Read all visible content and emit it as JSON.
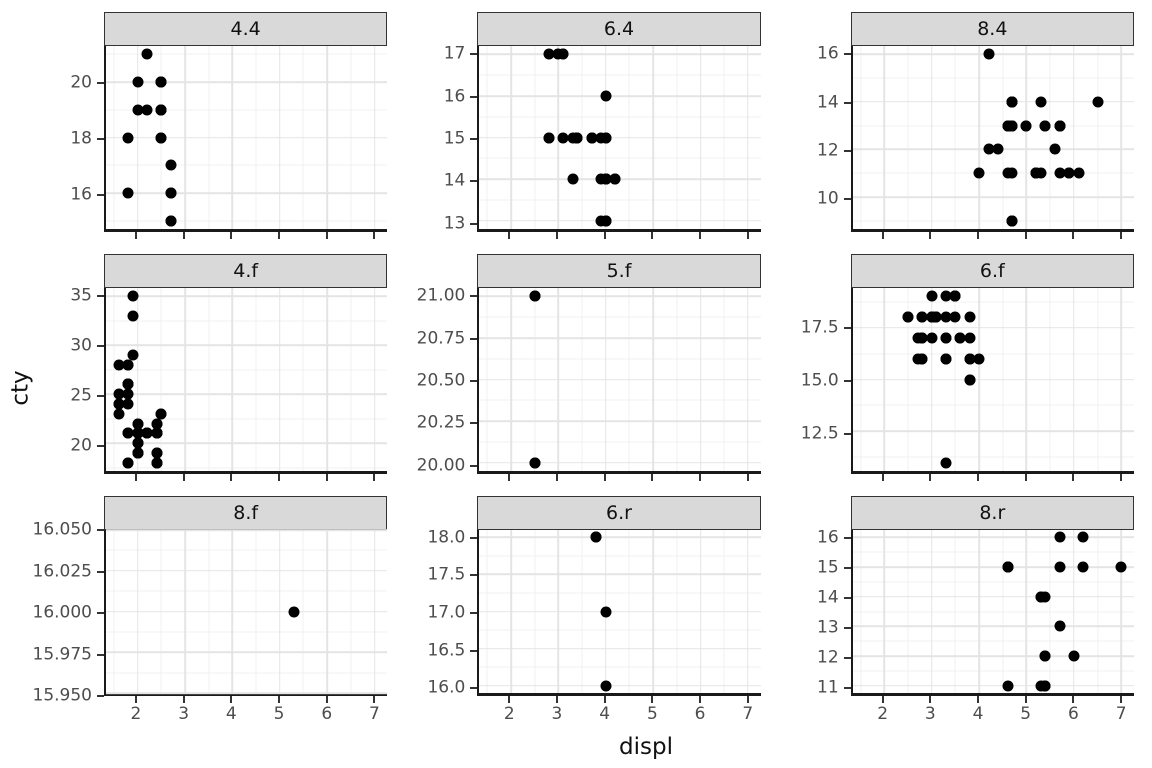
{
  "chart_data": {
    "type": "scatter",
    "title": "",
    "xlabel": "displ",
    "ylabel": "cty",
    "legend": "none",
    "layout": "facet-grid-3x3, free y scales, shared x scale 2-7, light gray major/minor gridlines, gray facet strips",
    "x_ticks": [
      2,
      3,
      4,
      5,
      6,
      7
    ],
    "x_tick_labels": [
      "2",
      "3",
      "4",
      "5",
      "6",
      "7"
    ],
    "x_domain": [
      1.33,
      7.27
    ],
    "style": {
      "strip_bg": "#d9d9d9",
      "point_color": "#000000",
      "grid_major": "#e4e4e4",
      "grid_minor": "#f1f1f1",
      "axis_line": "#1a1a1a",
      "tick_color": "#333333",
      "text_color": "#4d4d4d"
    },
    "facets": [
      {
        "label": "4.4",
        "y_ticks": [
          16,
          18,
          20
        ],
        "y_tick_labels": [
          "16",
          "18",
          "20"
        ],
        "y_domain": [
          14.7,
          21.3
        ],
        "points": [
          [
            1.8,
            18
          ],
          [
            1.8,
            16
          ],
          [
            2.0,
            20
          ],
          [
            2.0,
            19
          ],
          [
            2.2,
            21
          ],
          [
            2.2,
            19
          ],
          [
            2.5,
            19
          ],
          [
            2.5,
            20
          ],
          [
            2.5,
            20
          ],
          [
            2.5,
            19
          ],
          [
            2.5,
            18
          ],
          [
            2.5,
            18
          ],
          [
            2.5,
            19
          ],
          [
            2.5,
            19
          ],
          [
            2.5,
            20
          ],
          [
            2.5,
            20
          ],
          [
            2.7,
            15
          ],
          [
            2.7,
            16
          ],
          [
            2.7,
            17
          ],
          [
            2.7,
            16
          ],
          [
            2.7,
            15
          ]
        ]
      },
      {
        "label": "6.4",
        "y_ticks": [
          13,
          14,
          15,
          16,
          17
        ],
        "y_tick_labels": [
          "13",
          "14",
          "15",
          "16",
          "17"
        ],
        "y_domain": [
          12.8,
          17.2
        ],
        "points": [
          [
            2.8,
            15
          ],
          [
            2.8,
            17
          ],
          [
            3.1,
            17
          ],
          [
            3.1,
            15
          ],
          [
            2.8,
            15
          ],
          [
            3.1,
            17
          ],
          [
            3.7,
            15
          ],
          [
            3.7,
            15
          ],
          [
            3.9,
            15
          ],
          [
            3.9,
            14
          ],
          [
            3.9,
            13
          ],
          [
            4.0,
            14
          ],
          [
            4.0,
            13
          ],
          [
            4.0,
            13
          ],
          [
            4.0,
            14
          ],
          [
            4.2,
            14
          ],
          [
            4.2,
            14
          ],
          [
            3.0,
            17
          ],
          [
            3.7,
            15
          ],
          [
            4.0,
            15
          ],
          [
            4.0,
            14
          ],
          [
            4.0,
            13
          ],
          [
            3.3,
            14
          ],
          [
            3.3,
            15
          ],
          [
            4.0,
            14
          ],
          [
            3.4,
            15
          ],
          [
            3.4,
            15
          ],
          [
            4.0,
            16
          ],
          [
            3.4,
            15
          ],
          [
            3.4,
            15
          ],
          [
            4.0,
            15
          ],
          [
            4.0,
            14
          ]
        ]
      },
      {
        "label": "8.4",
        "y_ticks": [
          10,
          12,
          14,
          16
        ],
        "y_tick_labels": [
          "10",
          "12",
          "14",
          "16"
        ],
        "y_domain": [
          8.65,
          16.35
        ],
        "points": [
          [
            4.2,
            16
          ],
          [
            5.3,
            14
          ],
          [
            5.3,
            11
          ],
          [
            5.7,
            11
          ],
          [
            6.5,
            14
          ],
          [
            4.7,
            14
          ],
          [
            4.7,
            14
          ],
          [
            4.7,
            9
          ],
          [
            5.2,
            11
          ],
          [
            5.2,
            11
          ],
          [
            4.7,
            13
          ],
          [
            4.7,
            9
          ],
          [
            4.7,
            13
          ],
          [
            5.2,
            11
          ],
          [
            5.7,
            13
          ],
          [
            5.9,
            11
          ],
          [
            4.7,
            13
          ],
          [
            4.7,
            13
          ],
          [
            4.7,
            9
          ],
          [
            4.7,
            13
          ],
          [
            5.2,
            11
          ],
          [
            5.2,
            11
          ],
          [
            5.7,
            13
          ],
          [
            5.9,
            11
          ],
          [
            4.6,
            13
          ],
          [
            5.0,
            13
          ],
          [
            4.6,
            13
          ],
          [
            4.6,
            13
          ],
          [
            4.6,
            13
          ],
          [
            5.4,
            13
          ],
          [
            5.4,
            13
          ],
          [
            4.7,
            14
          ],
          [
            4.7,
            9
          ],
          [
            4.7,
            14
          ],
          [
            5.7,
            13
          ],
          [
            6.1,
            11
          ],
          [
            4.0,
            11
          ],
          [
            4.2,
            12
          ],
          [
            4.4,
            12
          ],
          [
            4.6,
            11
          ],
          [
            4.6,
            13
          ],
          [
            5.0,
            13
          ],
          [
            5.6,
            12
          ],
          [
            4.7,
            14
          ],
          [
            4.7,
            11
          ],
          [
            5.7,
            13
          ]
        ]
      },
      {
        "label": "4.f",
        "y_ticks": [
          20,
          25,
          30,
          35
        ],
        "y_tick_labels": [
          "20",
          "25",
          "30",
          "35"
        ],
        "y_domain": [
          17.15,
          35.85
        ],
        "points": [
          [
            1.8,
            18
          ],
          [
            1.8,
            21
          ],
          [
            2.0,
            20
          ],
          [
            2.0,
            21
          ],
          [
            2.4,
            19
          ],
          [
            2.4,
            22
          ],
          [
            2.4,
            18
          ],
          [
            1.6,
            28
          ],
          [
            1.6,
            24
          ],
          [
            1.6,
            25
          ],
          [
            1.6,
            23
          ],
          [
            1.6,
            24
          ],
          [
            1.8,
            26
          ],
          [
            1.8,
            25
          ],
          [
            1.8,
            24
          ],
          [
            2.0,
            21
          ],
          [
            2.4,
            18
          ],
          [
            2.4,
            18
          ],
          [
            2.4,
            21
          ],
          [
            2.4,
            21
          ],
          [
            2.0,
            19
          ],
          [
            2.0,
            19
          ],
          [
            2.0,
            20
          ],
          [
            2.0,
            20
          ],
          [
            2.4,
            21
          ],
          [
            2.4,
            19
          ],
          [
            2.5,
            23
          ],
          [
            2.5,
            23
          ],
          [
            2.2,
            21
          ],
          [
            2.2,
            21
          ],
          [
            2.4,
            21
          ],
          [
            2.4,
            21
          ],
          [
            2.2,
            21
          ],
          [
            2.2,
            21
          ],
          [
            2.4,
            21
          ],
          [
            2.4,
            22
          ],
          [
            1.8,
            26
          ],
          [
            1.8,
            28
          ],
          [
            1.8,
            26
          ],
          [
            1.8,
            26
          ],
          [
            1.8,
            28
          ],
          [
            2.0,
            21
          ],
          [
            2.0,
            19
          ],
          [
            2.0,
            21
          ],
          [
            2.0,
            22
          ],
          [
            1.9,
            33
          ],
          [
            2.0,
            21
          ],
          [
            2.0,
            19
          ],
          [
            2.0,
            22
          ],
          [
            2.0,
            21
          ],
          [
            1.9,
            35
          ],
          [
            1.9,
            29
          ],
          [
            2.0,
            19
          ],
          [
            2.0,
            21
          ],
          [
            1.8,
            21
          ],
          [
            1.8,
            18
          ],
          [
            2.0,
            19
          ],
          [
            2.0,
            21
          ]
        ]
      },
      {
        "label": "5.f",
        "y_ticks": [
          20.0,
          20.25,
          20.5,
          20.75,
          21.0
        ],
        "y_tick_labels": [
          "20.00",
          "20.25",
          "20.50",
          "20.75",
          "21.00"
        ],
        "y_domain": [
          19.95,
          21.05
        ],
        "points": [
          [
            2.5,
            20
          ],
          [
            2.5,
            20
          ],
          [
            2.5,
            21
          ],
          [
            2.5,
            21
          ]
        ]
      },
      {
        "label": "6.f",
        "y_ticks": [
          12.5,
          15.0,
          17.5
        ],
        "y_tick_labels": [
          "12.5",
          "15.0",
          "17.5"
        ],
        "y_domain": [
          10.6,
          19.4
        ],
        "points": [
          [
            2.8,
            16
          ],
          [
            2.8,
            18
          ],
          [
            3.1,
            18
          ],
          [
            3.1,
            18
          ],
          [
            3.5,
            18
          ],
          [
            3.6,
            17
          ],
          [
            3.0,
            17
          ],
          [
            3.3,
            16
          ],
          [
            3.3,
            16
          ],
          [
            3.3,
            17
          ],
          [
            3.3,
            17
          ],
          [
            3.3,
            11
          ],
          [
            3.8,
            15
          ],
          [
            3.8,
            15
          ],
          [
            3.8,
            16
          ],
          [
            4.0,
            16
          ],
          [
            2.5,
            18
          ],
          [
            2.5,
            18
          ],
          [
            3.3,
            19
          ],
          [
            2.7,
            17
          ],
          [
            2.7,
            16
          ],
          [
            3.5,
            19
          ],
          [
            3.5,
            19
          ],
          [
            3.0,
            18
          ],
          [
            3.0,
            19
          ],
          [
            3.5,
            19
          ],
          [
            3.1,
            18
          ],
          [
            3.8,
            16
          ],
          [
            3.8,
            17
          ],
          [
            3.8,
            18
          ],
          [
            3.0,
            18
          ],
          [
            3.0,
            18
          ],
          [
            3.5,
            19
          ],
          [
            3.0,
            18
          ],
          [
            3.0,
            18
          ],
          [
            3.3,
            18
          ],
          [
            2.8,
            17
          ],
          [
            2.8,
            17
          ],
          [
            2.8,
            17
          ],
          [
            2.8,
            16
          ],
          [
            2.8,
            18
          ],
          [
            3.6,
            17
          ]
        ]
      },
      {
        "label": "8.f",
        "y_ticks": [
          15.95,
          15.975,
          16.0,
          16.025,
          16.05
        ],
        "y_tick_labels": [
          "15.950",
          "15.975",
          "16.000",
          "16.025",
          "16.050"
        ],
        "y_domain": [
          15.95,
          16.05
        ],
        "points": [
          [
            5.3,
            16
          ]
        ]
      },
      {
        "label": "6.r",
        "y_ticks": [
          16.0,
          16.5,
          17.0,
          17.5,
          18.0
        ],
        "y_tick_labels": [
          "16.0",
          "16.5",
          "17.0",
          "17.5",
          "18.0"
        ],
        "y_domain": [
          15.9,
          18.1
        ],
        "points": [
          [
            3.8,
            18
          ],
          [
            3.8,
            18
          ],
          [
            4.0,
            17
          ],
          [
            4.0,
            16
          ]
        ]
      },
      {
        "label": "8.r",
        "y_ticks": [
          11,
          12,
          13,
          14,
          15,
          16
        ],
        "y_tick_labels": [
          "11",
          "12",
          "13",
          "14",
          "15",
          "16"
        ],
        "y_domain": [
          10.75,
          16.25
        ],
        "points": [
          [
            5.3,
            14
          ],
          [
            5.3,
            11
          ],
          [
            5.3,
            14
          ],
          [
            5.7,
            13
          ],
          [
            6.0,
            12
          ],
          [
            5.7,
            16
          ],
          [
            5.7,
            15
          ],
          [
            6.2,
            16
          ],
          [
            6.2,
            15
          ],
          [
            7.0,
            15
          ],
          [
            4.6,
            11
          ],
          [
            5.4,
            11
          ],
          [
            5.4,
            12
          ],
          [
            5.4,
            11
          ],
          [
            5.4,
            11
          ],
          [
            5.4,
            12
          ],
          [
            4.6,
            15
          ],
          [
            4.6,
            15
          ],
          [
            4.6,
            15
          ],
          [
            4.6,
            15
          ],
          [
            5.4,
            14
          ]
        ]
      }
    ]
  }
}
